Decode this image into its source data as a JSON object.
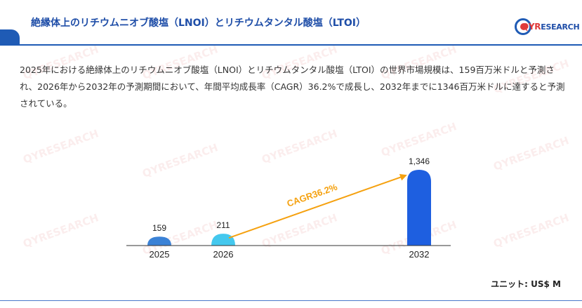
{
  "header": {
    "title": "絶縁体上のリチウムニオブ酸塩（LNOI）とリチウムタンタル酸塩（LTOI）"
  },
  "logo": {
    "brand_big": "QYR",
    "brand_small": "ESEARCH"
  },
  "description": "2025年における絶縁体上のリチウムニオブ酸塩（LNOI）とリチウムタンタル酸塩（LTOI）の世界市場規模は、159百万米ドルと予測され、2026年から2032年の予測期間において、年間平均成長率（CAGR）36.2%で成長し、2032年までに1346百万米ドルに達すると予測されている。",
  "chart_data": {
    "type": "bar",
    "categories": [
      "2025",
      "2026",
      "2032"
    ],
    "values": [
      159,
      211,
      1346
    ],
    "value_labels": [
      "159",
      "211",
      "1,346"
    ],
    "colors": [
      "#3b82d6",
      "#44c8ee",
      "#1e5fe0"
    ],
    "annotation": "CAGR36.2%",
    "annotation_color": "#f5a10f",
    "unit_label": "ユニット: US$ M"
  }
}
